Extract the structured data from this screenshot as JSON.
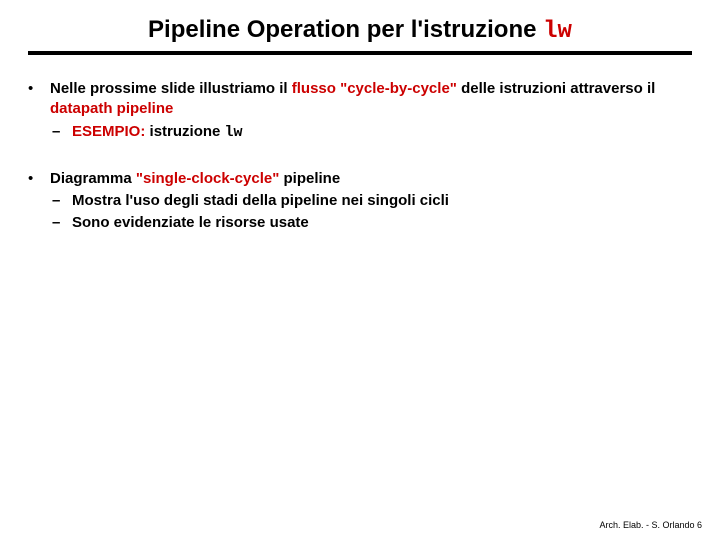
{
  "colors": {
    "accent": "#cc0000",
    "rule": "#000000",
    "text": "#000000",
    "background": "#ffffff"
  },
  "typography": {
    "title_fontsize": 24,
    "body_fontsize": 15,
    "footer_fontsize": 9,
    "body_weight": "bold",
    "code_font": "Courier New"
  },
  "title": {
    "prefix": "Pipeline Operation per l'istruzione ",
    "code": "lw"
  },
  "bullets": [
    {
      "segments": [
        {
          "t": "Nelle prossime slide illustriamo il "
        },
        {
          "t": "flusso \"cycle-by-cycle\"",
          "red": true
        },
        {
          "t": " delle istruzioni attraverso il "
        },
        {
          "t": "datapath pipeline",
          "red": true
        }
      ],
      "subs": [
        {
          "segments": [
            {
              "t": "ESEMPIO:",
              "red": true
            },
            {
              "t": " istruzione "
            },
            {
              "t": "lw",
              "code": true
            }
          ]
        }
      ]
    },
    {
      "segments": [
        {
          "t": "Diagramma "
        },
        {
          "t": "\"single-clock-cycle\"",
          "red": true
        },
        {
          "t": " pipeline"
        }
      ],
      "subs": [
        {
          "segments": [
            {
              "t": "Mostra l'uso degli stadi della pipeline nei singoli cicli"
            }
          ]
        },
        {
          "segments": [
            {
              "t": "Sono evidenziate le risorse usate"
            }
          ]
        }
      ]
    }
  ],
  "footer": "Arch. Elab. - S. Orlando 6",
  "marks": {
    "bullet": "•",
    "dash": "–"
  }
}
